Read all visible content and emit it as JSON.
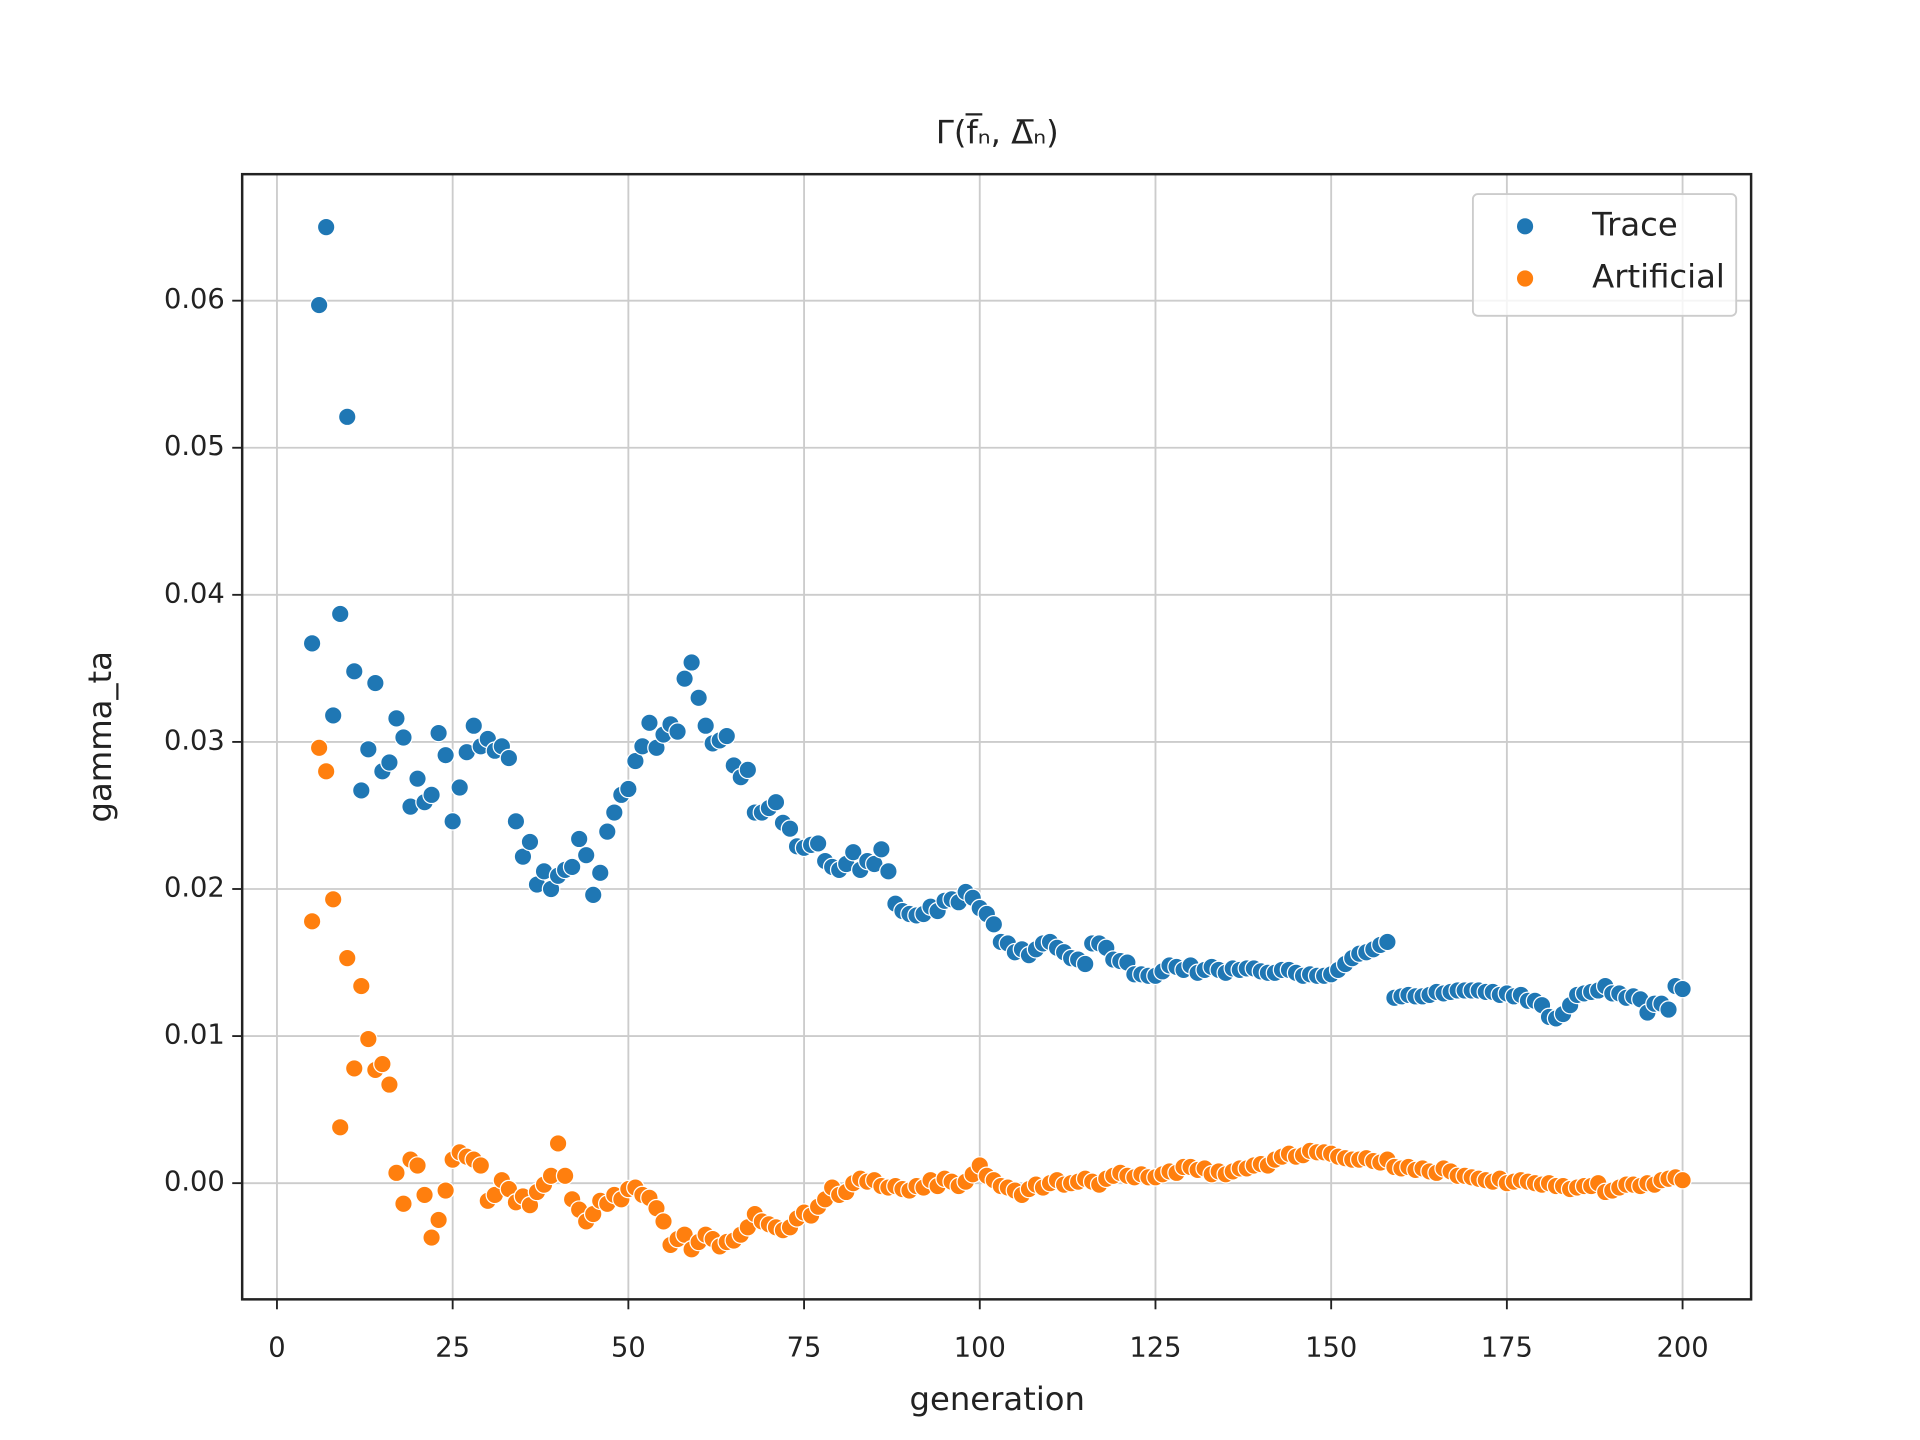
{
  "chart_data": {
    "type": "scatter",
    "title": "Γ(f̅ₙ, Δ̅ₙ)",
    "xlabel": "generation",
    "ylabel": "gamma_ta",
    "x": [
      5,
      6,
      7,
      8,
      9,
      10,
      11,
      12,
      13,
      14,
      15,
      16,
      17,
      18,
      19,
      20,
      21,
      22,
      23,
      24,
      25,
      26,
      27,
      28,
      29,
      30,
      31,
      32,
      33,
      34,
      35,
      36,
      37,
      38,
      39,
      40,
      41,
      42,
      43,
      44,
      45,
      46,
      47,
      48,
      49,
      50,
      51,
      52,
      53,
      54,
      55,
      56,
      57,
      58,
      59,
      60,
      61,
      62,
      63,
      64,
      65,
      66,
      67,
      68,
      69,
      70,
      71,
      72,
      73,
      74,
      75,
      76,
      77,
      78,
      79,
      80,
      81,
      82,
      83,
      84,
      85,
      86,
      87,
      88,
      89,
      90,
      91,
      92,
      93,
      94,
      95,
      96,
      97,
      98,
      99,
      100,
      101,
      102,
      103,
      104,
      105,
      106,
      107,
      108,
      109,
      110,
      111,
      112,
      113,
      114,
      115,
      116,
      117,
      118,
      119,
      120,
      121,
      122,
      123,
      124,
      125,
      126,
      127,
      128,
      129,
      130,
      131,
      132,
      133,
      134,
      135,
      136,
      137,
      138,
      139,
      140,
      141,
      142,
      143,
      144,
      145,
      146,
      147,
      148,
      149,
      150,
      151,
      152,
      153,
      154,
      155,
      156,
      157,
      158,
      159,
      160,
      161,
      162,
      163,
      164,
      165,
      166,
      167,
      168,
      169,
      170,
      171,
      172,
      173,
      174,
      175,
      176,
      177,
      178,
      179,
      180,
      181,
      182,
      183,
      184,
      185,
      186,
      187,
      188,
      189,
      190,
      191,
      192,
      193,
      194,
      195,
      196,
      197,
      198,
      199,
      200
    ],
    "series": [
      {
        "name": "Trace",
        "color": "#1f77b4",
        "values": [
          0.0367,
          0.0597,
          0.065,
          0.0318,
          0.0387,
          0.0521,
          0.0348,
          0.0267,
          0.0295,
          0.034,
          0.028,
          0.0286,
          0.0316,
          0.0303,
          0.0256,
          0.0275,
          0.0259,
          0.0264,
          0.0306,
          0.0291,
          0.0246,
          0.0269,
          0.0293,
          0.0311,
          0.0297,
          0.0302,
          0.0294,
          0.0297,
          0.0289,
          0.0246,
          0.0222,
          0.0232,
          0.0203,
          0.0212,
          0.02,
          0.0209,
          0.0213,
          0.0215,
          0.0234,
          0.0223,
          0.0196,
          0.0211,
          0.0239,
          0.0252,
          0.0264,
          0.0268,
          0.0287,
          0.0297,
          0.0313,
          0.0296,
          0.0305,
          0.0312,
          0.0307,
          0.0343,
          0.0354,
          0.033,
          0.0311,
          0.0299,
          0.0301,
          0.0304,
          0.0284,
          0.0276,
          0.0281,
          0.0252,
          0.0252,
          0.0255,
          0.0259,
          0.0245,
          0.0241,
          0.0229,
          0.0228,
          0.023,
          0.0231,
          0.0219,
          0.0215,
          0.0213,
          0.0217,
          0.0225,
          0.0213,
          0.0219,
          0.0217,
          0.0227,
          0.0212,
          0.019,
          0.0185,
          0.0183,
          0.0182,
          0.0183,
          0.0188,
          0.0185,
          0.0192,
          0.0193,
          0.0191,
          0.0198,
          0.0194,
          0.0187,
          0.0183,
          0.0176,
          0.0164,
          0.0163,
          0.0157,
          0.0159,
          0.0155,
          0.0159,
          0.0163,
          0.0164,
          0.016,
          0.0157,
          0.0153,
          0.0152,
          0.0149,
          0.0163,
          0.0163,
          0.016,
          0.0152,
          0.0151,
          0.015,
          0.0142,
          0.0142,
          0.0141,
          0.0141,
          0.0144,
          0.0148,
          0.0147,
          0.0145,
          0.0148,
          0.0143,
          0.0145,
          0.0147,
          0.0145,
          0.0143,
          0.0146,
          0.0145,
          0.0146,
          0.0146,
          0.0144,
          0.0143,
          0.0143,
          0.0145,
          0.0145,
          0.0143,
          0.0141,
          0.0142,
          0.0141,
          0.0141,
          0.0142,
          0.0145,
          0.0149,
          0.0153,
          0.0156,
          0.0157,
          0.0159,
          0.0162,
          0.0164,
          0.0126,
          0.0127,
          0.0128,
          0.0127,
          0.0127,
          0.0128,
          0.013,
          0.0129,
          0.013,
          0.0131,
          0.0131,
          0.0131,
          0.0131,
          0.013,
          0.013,
          0.0128,
          0.0129,
          0.0127,
          0.0128,
          0.0124,
          0.0124,
          0.0121,
          0.0113,
          0.0112,
          0.0115,
          0.0121,
          0.0128,
          0.0129,
          0.013,
          0.0131,
          0.0134,
          0.0129,
          0.0129,
          0.0126,
          0.0127,
          0.0125,
          0.0116,
          0.0122,
          0.0122,
          0.0118,
          0.0134,
          0.0132
        ]
      },
      {
        "name": "Artificial",
        "color": "#ff7f0e",
        "values": [
          0.0178,
          0.0296,
          0.028,
          0.0193,
          0.0038,
          0.0153,
          0.0078,
          0.0134,
          0.0098,
          0.0077,
          0.0081,
          0.0067,
          0.0007,
          -0.0014,
          0.0016,
          0.0012,
          -0.0008,
          -0.0037,
          -0.0025,
          -0.0005,
          0.0016,
          0.0021,
          0.0018,
          0.0016,
          0.0012,
          -0.0012,
          -0.0008,
          0.0002,
          -0.0004,
          -0.0013,
          -0.0009,
          -0.0015,
          -0.0006,
          -0.0001,
          0.0005,
          0.0027,
          0.0005,
          -0.0011,
          -0.0018,
          -0.0026,
          -0.0021,
          -0.0012,
          -0.0014,
          -0.0008,
          -0.0011,
          -0.0004,
          -0.0003,
          -0.0008,
          -0.001,
          -0.0017,
          -0.0026,
          -0.0042,
          -0.0038,
          -0.0035,
          -0.0045,
          -0.004,
          -0.0035,
          -0.0038,
          -0.0043,
          -0.004,
          -0.0039,
          -0.0035,
          -0.003,
          -0.0021,
          -0.0026,
          -0.0028,
          -0.003,
          -0.0032,
          -0.003,
          -0.0024,
          -0.002,
          -0.0022,
          -0.0016,
          -0.0011,
          -0.0003,
          -0.0008,
          -0.0006,
          0.0,
          0.0003,
          0.0001,
          0.0002,
          -0.0002,
          -0.0003,
          -0.0002,
          -0.0004,
          -0.0005,
          -0.0002,
          -0.0003,
          0.0002,
          -0.0002,
          0.0003,
          0.0001,
          -0.0002,
          0.0001,
          0.0006,
          0.0012,
          0.0005,
          0.0002,
          -0.0002,
          -0.0003,
          -0.0005,
          -0.0008,
          -0.0004,
          -0.0001,
          -0.0003,
          0.0,
          0.0002,
          -0.0001,
          0.0,
          0.0001,
          0.0003,
          0.0001,
          -0.0001,
          0.0003,
          0.0005,
          0.0007,
          0.0005,
          0.0004,
          0.0006,
          0.0004,
          0.0004,
          0.0006,
          0.0008,
          0.0007,
          0.0011,
          0.0011,
          0.0009,
          0.001,
          0.0006,
          0.0008,
          0.0006,
          0.0008,
          0.001,
          0.001,
          0.0012,
          0.0013,
          0.0012,
          0.0016,
          0.0018,
          0.002,
          0.0018,
          0.0019,
          0.0022,
          0.0021,
          0.0021,
          0.002,
          0.0018,
          0.0017,
          0.0016,
          0.0016,
          0.0017,
          0.0015,
          0.0014,
          0.0016,
          0.0011,
          0.001,
          0.0011,
          0.0009,
          0.001,
          0.0008,
          0.0007,
          0.001,
          0.0008,
          0.0005,
          0.0005,
          0.0004,
          0.0003,
          0.0002,
          0.0001,
          0.0003,
          0.0,
          0.0001,
          0.0002,
          0.0001,
          0.0,
          -0.0001,
          0.0,
          -0.0002,
          -0.0002,
          -0.0004,
          -0.0003,
          -0.0002,
          -0.0002,
          0.0,
          -0.0006,
          -0.0005,
          -0.0003,
          -0.0001,
          -0.0001,
          -0.0002,
          0.0,
          -0.0001,
          0.0002,
          0.0003,
          0.0004,
          0.0002
        ]
      }
    ],
    "xlim": [
      -4.95,
      209.75
    ],
    "ylim": [
      -0.0079,
      0.0686
    ],
    "xticks": [
      0,
      25,
      50,
      75,
      100,
      125,
      150,
      175,
      200
    ],
    "yticks": [
      {
        "value": 0,
        "label": "0.00"
      },
      0.01,
      0.02,
      0.03,
      0.04,
      0.05,
      0.06
    ],
    "grid": true,
    "legend": "upper right"
  }
}
